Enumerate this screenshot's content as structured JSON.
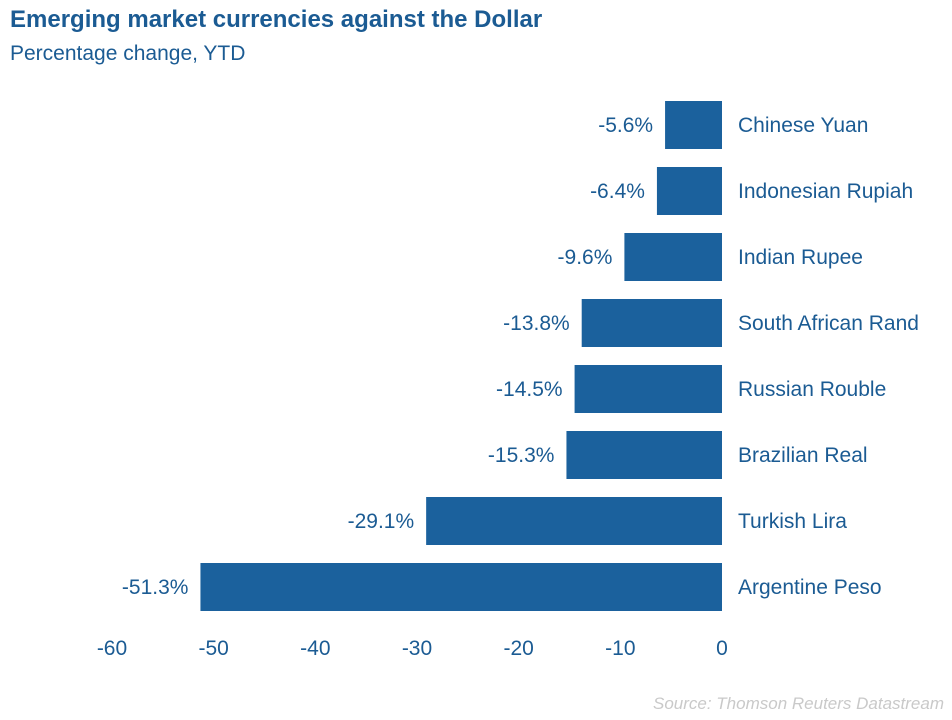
{
  "chart_data": {
    "type": "bar",
    "orientation": "horizontal",
    "title": "Emerging market currencies against the Dollar",
    "subtitle": "Percentage change, YTD",
    "source": "Source: Thomson Reuters Datastream",
    "categories": [
      "Chinese Yuan",
      "Indonesian Rupiah",
      "Indian Rupee",
      "South African Rand",
      "Russian Rouble",
      "Brazilian Real",
      "Turkish Lira",
      "Argentine Peso"
    ],
    "values": [
      -5.6,
      -6.4,
      -9.6,
      -13.8,
      -14.5,
      -15.3,
      -29.1,
      -51.3
    ],
    "value_labels": [
      "-5.6%",
      "-6.4%",
      "-9.6%",
      "-13.8%",
      "-14.5%",
      "-15.3%",
      "-29.1%",
      "-51.3%"
    ],
    "xlim": [
      -60,
      0
    ],
    "xticks": [
      "-60",
      "-50",
      "-40",
      "-30",
      "-20",
      "-10",
      "0"
    ],
    "grid": false,
    "bar_color": "#1b619d",
    "text_color": "#1b5b93"
  }
}
